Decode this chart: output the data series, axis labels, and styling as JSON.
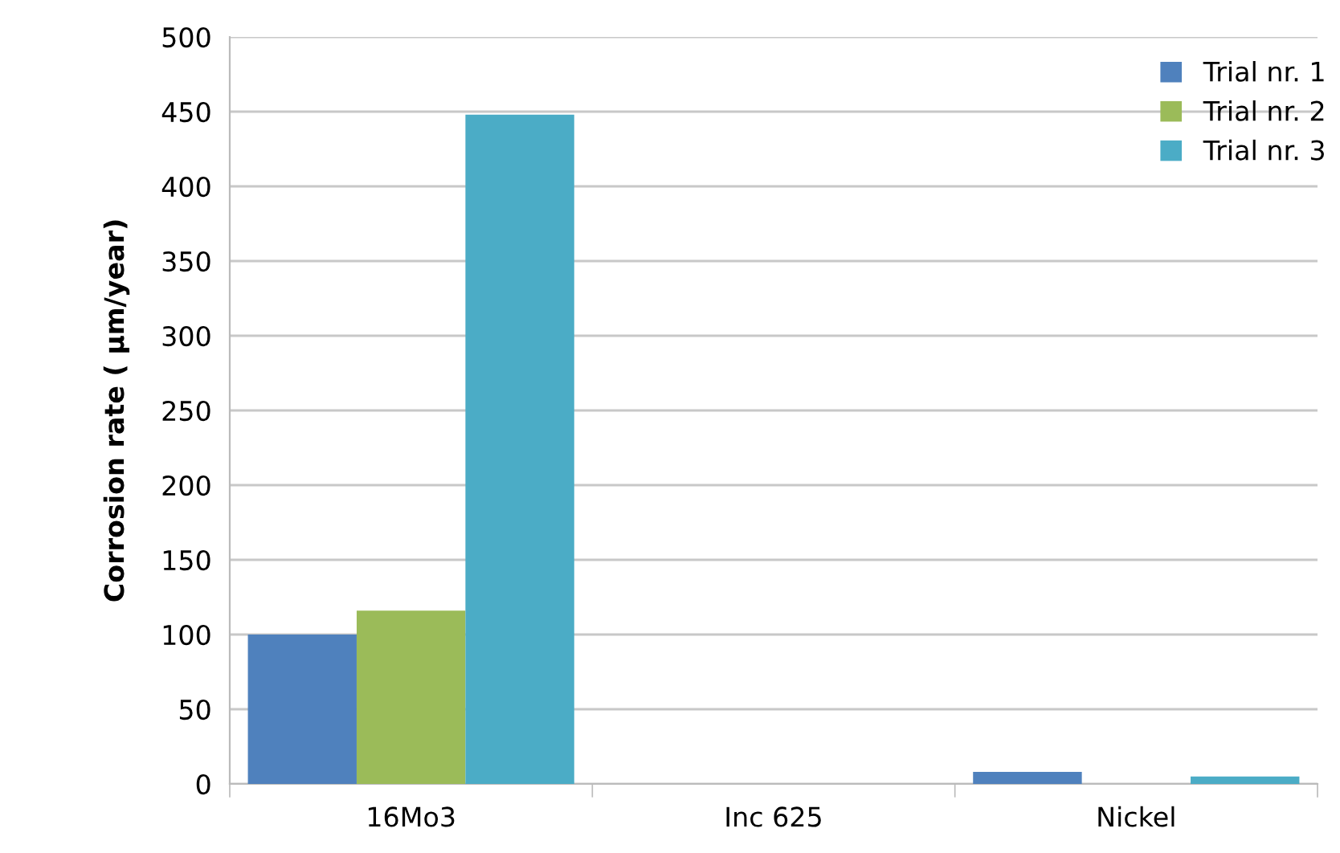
{
  "chart_data": {
    "type": "bar",
    "ylabel": "Corrosion rate ( µm/year)",
    "categories": [
      "16Mo3",
      "Inc 625",
      "Nickel"
    ],
    "series": [
      {
        "name": "Trial nr. 1",
        "color": "#4f81bd",
        "values": [
          100,
          0,
          8
        ]
      },
      {
        "name": "Trial nr. 2",
        "color": "#9bbb59",
        "values": [
          116,
          0,
          0
        ]
      },
      {
        "name": "Trial nr. 3",
        "color": "#4bacc6",
        "values": [
          448,
          0,
          5
        ]
      }
    ],
    "ylim": [
      0,
      500
    ],
    "yticks": [
      0,
      50,
      100,
      150,
      200,
      250,
      300,
      350,
      400,
      450,
      500
    ],
    "grid": "y",
    "legend": "top right"
  }
}
